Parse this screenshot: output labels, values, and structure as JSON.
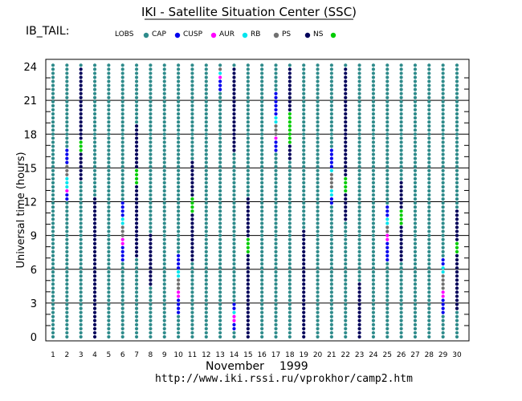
{
  "header": {
    "title": "IKI - Satellite Situation Center (SSC)",
    "satellite": "IB_TAIL:"
  },
  "footer": {
    "month": "November",
    "year": "1999",
    "url": "http://www.iki.rssi.ru/vprokhor/camp2.htm"
  },
  "colors": {
    "LOBS": "#2e8b8b",
    "CAP": "#0000ee",
    "CUSP": "#ff00ff",
    "AUR": "#00e5ee",
    "RB": "#707070",
    "PS": "#00005a",
    "NS": "#00cc00"
  },
  "chart_data": {
    "type": "scatter",
    "title": "IKI - Satellite Situation Center (SSC)",
    "xlabel": "November 1999",
    "ylabel": "Universal time  (hours)",
    "xlim": [
      1,
      30
    ],
    "ylim": [
      0,
      24
    ],
    "yticks": [
      0,
      3,
      6,
      9,
      12,
      15,
      18,
      21,
      24
    ],
    "days": [
      1,
      2,
      3,
      4,
      5,
      6,
      7,
      8,
      9,
      10,
      11,
      12,
      13,
      14,
      15,
      16,
      17,
      18,
      19,
      20,
      21,
      22,
      23,
      24,
      25,
      26,
      27,
      28,
      29,
      30
    ],
    "legend": [
      {
        "key": "LOBS",
        "label": "LOBS"
      },
      {
        "key": "CAP",
        "label": "CAP"
      },
      {
        "key": "CUSP",
        "label": "CUSP"
      },
      {
        "key": "AUR",
        "label": "AUR"
      },
      {
        "key": "RB",
        "label": "RB"
      },
      {
        "key": "PS",
        "label": "PS"
      },
      {
        "key": "NS",
        "label": "NS"
      }
    ],
    "default_region": "LOBS",
    "segments": [
      {
        "day": 2,
        "start": 12.2,
        "end": 12.8,
        "region": "CAP"
      },
      {
        "day": 2,
        "start": 12.8,
        "end": 13.3,
        "region": "CUSP"
      },
      {
        "day": 2,
        "start": 13.3,
        "end": 14.3,
        "region": "AUR"
      },
      {
        "day": 2,
        "start": 14.3,
        "end": 15.2,
        "region": "RB"
      },
      {
        "day": 2,
        "start": 15.2,
        "end": 16.8,
        "region": "CAP"
      },
      {
        "day": 3,
        "start": 14.0,
        "end": 16.3,
        "region": "PS"
      },
      {
        "day": 3,
        "start": 16.3,
        "end": 17.5,
        "region": "NS"
      },
      {
        "day": 3,
        "start": 17.5,
        "end": 24.0,
        "region": "PS"
      },
      {
        "day": 4,
        "start": 0.0,
        "end": 12.5,
        "region": "PS"
      },
      {
        "day": 6,
        "start": 6.6,
        "end": 8.2,
        "region": "CAP"
      },
      {
        "day": 6,
        "start": 8.2,
        "end": 8.7,
        "region": "CUSP"
      },
      {
        "day": 6,
        "start": 8.7,
        "end": 9.9,
        "region": "RB"
      },
      {
        "day": 6,
        "start": 9.9,
        "end": 10.5,
        "region": "AUR"
      },
      {
        "day": 6,
        "start": 10.5,
        "end": 11.9,
        "region": "CAP"
      },
      {
        "day": 7,
        "start": 7.0,
        "end": 13.6,
        "region": "PS"
      },
      {
        "day": 7,
        "start": 13.6,
        "end": 15.0,
        "region": "NS"
      },
      {
        "day": 7,
        "start": 15.0,
        "end": 18.8,
        "region": "PS"
      },
      {
        "day": 8,
        "start": 4.5,
        "end": 9.0,
        "region": "PS"
      },
      {
        "day": 10,
        "start": 1.8,
        "end": 3.5,
        "region": "CAP"
      },
      {
        "day": 10,
        "start": 3.5,
        "end": 4.0,
        "region": "CUSP"
      },
      {
        "day": 10,
        "start": 4.0,
        "end": 5.3,
        "region": "RB"
      },
      {
        "day": 10,
        "start": 5.3,
        "end": 5.9,
        "region": "AUR"
      },
      {
        "day": 10,
        "start": 5.9,
        "end": 7.2,
        "region": "CAP"
      },
      {
        "day": 11,
        "start": 6.8,
        "end": 11.0,
        "region": "PS"
      },
      {
        "day": 11,
        "start": 11.0,
        "end": 12.4,
        "region": "NS"
      },
      {
        "day": 11,
        "start": 12.4,
        "end": 15.5,
        "region": "PS"
      },
      {
        "day": 13,
        "start": 21.6,
        "end": 22.7,
        "region": "CAP"
      },
      {
        "day": 13,
        "start": 22.7,
        "end": 23.2,
        "region": "CUSP"
      },
      {
        "day": 13,
        "start": 23.2,
        "end": 23.7,
        "region": "AUR"
      },
      {
        "day": 13,
        "start": 23.7,
        "end": 24.0,
        "region": "RB"
      },
      {
        "day": 14,
        "start": 0.6,
        "end": 1.4,
        "region": "CAP"
      },
      {
        "day": 14,
        "start": 1.4,
        "end": 1.8,
        "region": "CUSP"
      },
      {
        "day": 14,
        "start": 1.8,
        "end": 2.3,
        "region": "AUR"
      },
      {
        "day": 14,
        "start": 2.3,
        "end": 3.0,
        "region": "CAP"
      },
      {
        "day": 14,
        "start": 16.5,
        "end": 24.0,
        "region": "PS"
      },
      {
        "day": 15,
        "start": 0.0,
        "end": 7.3,
        "region": "PS"
      },
      {
        "day": 15,
        "start": 7.3,
        "end": 8.8,
        "region": "NS"
      },
      {
        "day": 15,
        "start": 8.8,
        "end": 12.4,
        "region": "PS"
      },
      {
        "day": 17,
        "start": 16.5,
        "end": 17.3,
        "region": "CAP"
      },
      {
        "day": 17,
        "start": 17.3,
        "end": 17.8,
        "region": "CUSP"
      },
      {
        "day": 17,
        "start": 17.8,
        "end": 19.0,
        "region": "RB"
      },
      {
        "day": 17,
        "start": 19.0,
        "end": 19.6,
        "region": "AUR"
      },
      {
        "day": 17,
        "start": 19.6,
        "end": 21.8,
        "region": "CAP"
      },
      {
        "day": 18,
        "start": 15.6,
        "end": 17.0,
        "region": "PS"
      },
      {
        "day": 18,
        "start": 17.0,
        "end": 20.0,
        "region": "NS"
      },
      {
        "day": 18,
        "start": 20.0,
        "end": 24.0,
        "region": "PS"
      },
      {
        "day": 19,
        "start": 0.0,
        "end": 9.6,
        "region": "PS"
      },
      {
        "day": 21,
        "start": 11.6,
        "end": 12.4,
        "region": "CAP"
      },
      {
        "day": 21,
        "start": 12.4,
        "end": 13.0,
        "region": "AUR"
      },
      {
        "day": 21,
        "start": 13.0,
        "end": 14.5,
        "region": "RB"
      },
      {
        "day": 21,
        "start": 14.5,
        "end": 15.1,
        "region": "AUR"
      },
      {
        "day": 21,
        "start": 15.1,
        "end": 16.7,
        "region": "CAP"
      },
      {
        "day": 22,
        "start": 10.2,
        "end": 12.6,
        "region": "PS"
      },
      {
        "day": 22,
        "start": 12.6,
        "end": 14.3,
        "region": "NS"
      },
      {
        "day": 22,
        "start": 14.3,
        "end": 24.0,
        "region": "PS"
      },
      {
        "day": 23,
        "start": 0.0,
        "end": 4.8,
        "region": "PS"
      },
      {
        "day": 25,
        "start": 6.8,
        "end": 8.5,
        "region": "CAP"
      },
      {
        "day": 25,
        "start": 8.5,
        "end": 9.0,
        "region": "CUSP"
      },
      {
        "day": 25,
        "start": 9.0,
        "end": 10.0,
        "region": "RB"
      },
      {
        "day": 25,
        "start": 10.0,
        "end": 10.6,
        "region": "AUR"
      },
      {
        "day": 25,
        "start": 10.6,
        "end": 11.8,
        "region": "CAP"
      },
      {
        "day": 26,
        "start": 6.8,
        "end": 10.0,
        "region": "PS"
      },
      {
        "day": 26,
        "start": 10.0,
        "end": 11.2,
        "region": "NS"
      },
      {
        "day": 26,
        "start": 11.2,
        "end": 14.0,
        "region": "PS"
      },
      {
        "day": 29,
        "start": 1.9,
        "end": 3.5,
        "region": "CAP"
      },
      {
        "day": 29,
        "start": 3.5,
        "end": 4.0,
        "region": "CUSP"
      },
      {
        "day": 29,
        "start": 4.0,
        "end": 5.5,
        "region": "RB"
      },
      {
        "day": 29,
        "start": 5.5,
        "end": 6.2,
        "region": "AUR"
      },
      {
        "day": 29,
        "start": 6.2,
        "end": 7.0,
        "region": "CAP"
      },
      {
        "day": 30,
        "start": 2.2,
        "end": 7.3,
        "region": "PS"
      },
      {
        "day": 30,
        "start": 7.3,
        "end": 8.6,
        "region": "NS"
      },
      {
        "day": 30,
        "start": 8.6,
        "end": 11.2,
        "region": "PS"
      }
    ]
  }
}
